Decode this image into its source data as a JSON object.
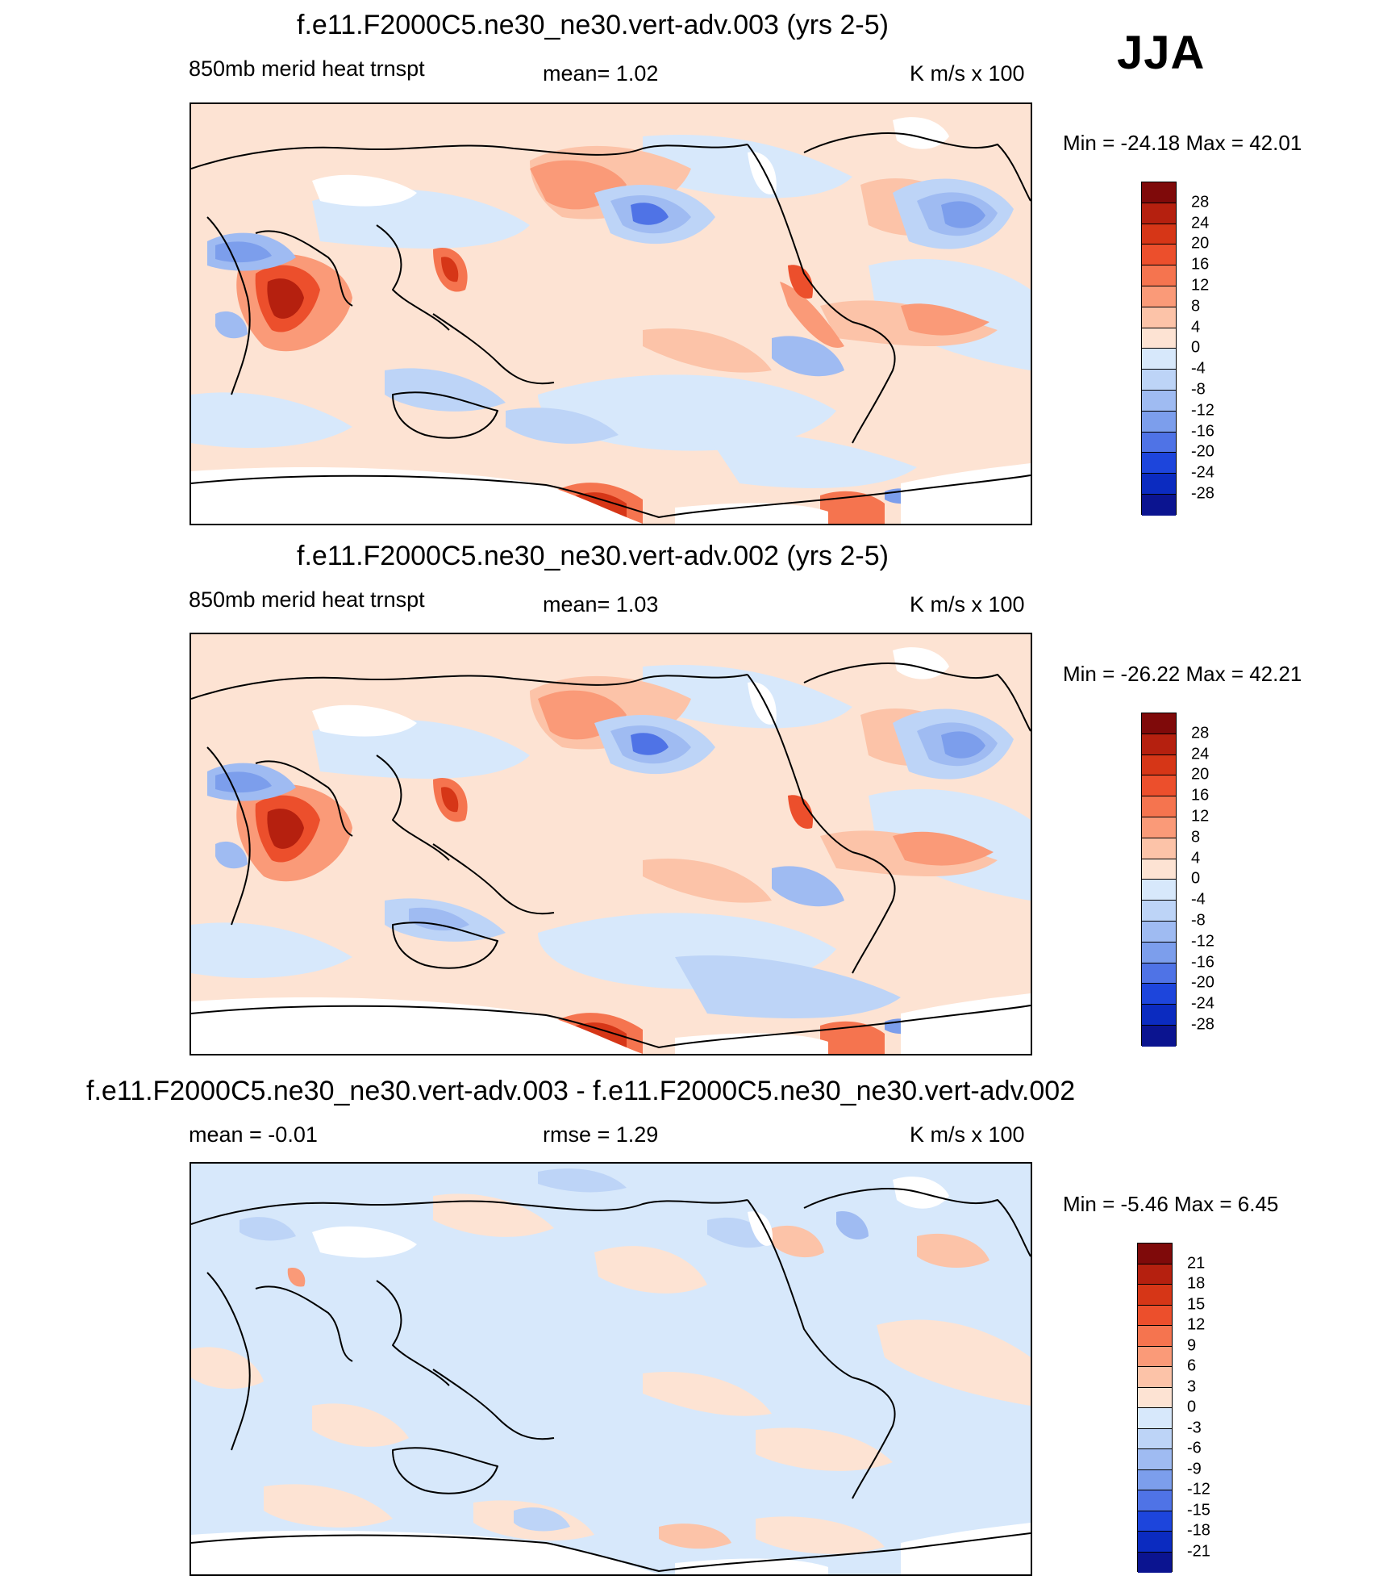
{
  "season_label": "JJA",
  "colors": {
    "pos": [
      "#fde3d3",
      "#fcc3a8",
      "#fa9a78",
      "#f5744f",
      "#ec4f2c",
      "#d63617",
      "#b5200f",
      "#7f0a0a"
    ],
    "neg": [
      "#d7e8fb",
      "#bdd4f7",
      "#9fbbf2",
      "#7c9eec",
      "#4f73e6",
      "#1d45dc",
      "#0b2bc0",
      "#0b1490"
    ],
    "land_missing": "#ffffff",
    "coast": "#000000"
  },
  "panels": [
    {
      "title": "f.e11.F2000C5.ne30_ne30.vert-adv.003 (yrs 2-5)",
      "left_label": "850mb merid heat trnspt",
      "center_label": "mean=   1.02",
      "units": "K m/s x 100",
      "minmax": "Min = -24.18 Max =  42.01",
      "colorbar_labels": [
        "28",
        "24",
        "20",
        "16",
        "12",
        "8",
        "4",
        "0",
        "-4",
        "-8",
        "-12",
        "-16",
        "-20",
        "-24",
        "-28"
      ]
    },
    {
      "title": "f.e11.F2000C5.ne30_ne30.vert-adv.002 (yrs 2-5)",
      "left_label": "850mb merid heat trnspt",
      "center_label": "mean=   1.03",
      "units": "K m/s x 100",
      "minmax": "Min = -26.22 Max =  42.21",
      "colorbar_labels": [
        "28",
        "24",
        "20",
        "16",
        "12",
        "8",
        "4",
        "0",
        "-4",
        "-8",
        "-12",
        "-16",
        "-20",
        "-24",
        "-28"
      ]
    },
    {
      "title": "f.e11.F2000C5.ne30_ne30.vert-adv.003 - f.e11.F2000C5.ne30_ne30.vert-adv.002",
      "left_label": "mean =  -0.01",
      "center_label": "rmse =    1.29",
      "units": "K m/s x 100",
      "minmax": "Min =  -5.46 Max =   6.45",
      "colorbar_labels": [
        "21",
        "18",
        "15",
        "12",
        "9",
        "6",
        "3",
        "0",
        "-3",
        "-6",
        "-9",
        "-12",
        "-15",
        "-18",
        "-21"
      ]
    }
  ]
}
